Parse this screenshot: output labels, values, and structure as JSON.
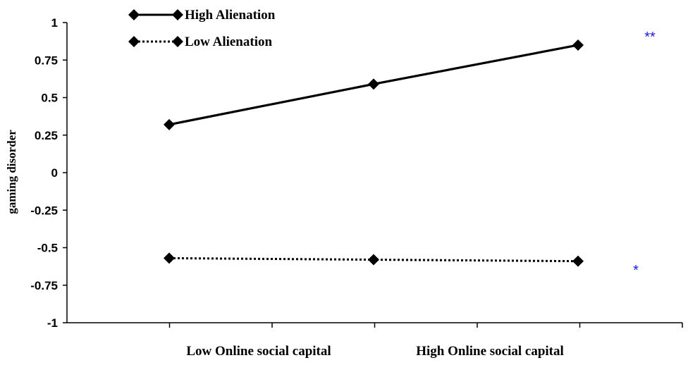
{
  "chart_data": {
    "type": "line",
    "ylabel": "gaming disorder",
    "ylim": [
      -1,
      1
    ],
    "yticks": [
      "1",
      "0.75",
      "0.5",
      "0.25",
      "0",
      "-0.25",
      "-0.5",
      "-0.75",
      "-1"
    ],
    "category_labels": [
      "Low Online social capital",
      "High Online social capital"
    ],
    "x": [
      1,
      2,
      3
    ],
    "grid": false,
    "legend_position": "top-left",
    "series": [
      {
        "name": "High Alienation",
        "values": [
          0.32,
          0.59,
          0.85
        ],
        "line_style": "solid",
        "annotation": "**"
      },
      {
        "name": "Low Alienation",
        "values": [
          -0.57,
          -0.58,
          -0.59
        ],
        "line_style": "dotted",
        "annotation": "*"
      }
    ],
    "colors": {
      "line": "#000000",
      "annotation": "#1a1ad6"
    }
  }
}
